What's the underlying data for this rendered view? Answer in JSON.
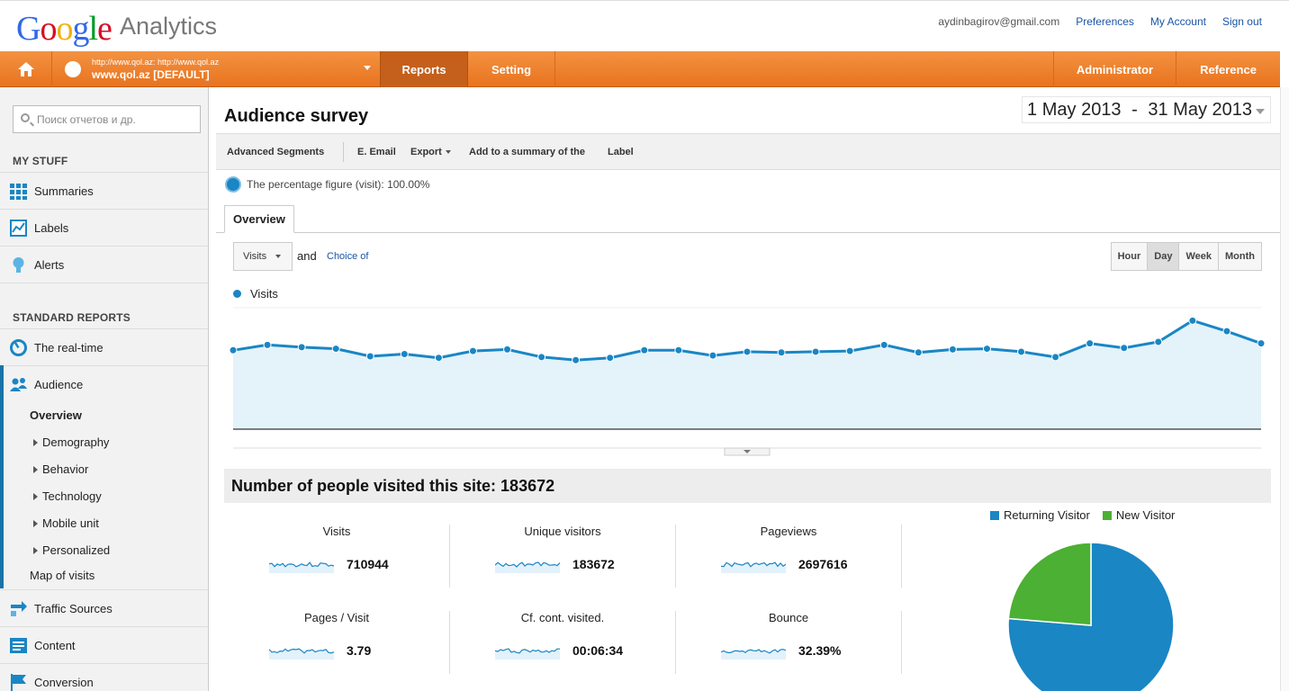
{
  "header": {
    "logo_google": [
      "G",
      "o",
      "o",
      "g",
      "l",
      "e"
    ],
    "logo_product": "Analytics",
    "email": "aydinbagirov@gmail.com",
    "links": [
      "Preferences",
      "My Account",
      "Sign out"
    ]
  },
  "nav": {
    "site_url": "http://www.qol.az: http://www.qol.az",
    "site_name": "www.qol.az [DEFAULT]",
    "tabs": [
      "Reports",
      "Setting"
    ],
    "right_tabs": [
      "Administrator",
      "Reference"
    ],
    "active_tab": "Reports",
    "accent": "#e8731f"
  },
  "sidebar": {
    "search_placeholder": "Поиск отчетов и др.",
    "my_stuff_head": "MY STUFF",
    "my_stuff": [
      {
        "label": "Summaries",
        "icon": "grid-icon"
      },
      {
        "label": "Labels",
        "icon": "chart-icon"
      },
      {
        "label": "Alerts",
        "icon": "lightbulb-icon"
      }
    ],
    "standard_head": "STANDARD REPORTS",
    "realtime": "The real-time",
    "audience": "Audience",
    "audience_sub": [
      {
        "label": "Overview",
        "bold": true,
        "arrow": false
      },
      {
        "label": "Demography",
        "arrow": true
      },
      {
        "label": "Behavior",
        "arrow": true
      },
      {
        "label": "Technology",
        "arrow": true
      },
      {
        "label": "Mobile unit",
        "arrow": true
      },
      {
        "label": "Personalized",
        "arrow": true
      },
      {
        "label": "Map of visits",
        "arrow": false
      }
    ],
    "after": [
      {
        "label": "Traffic Sources",
        "icon": "arrows-icon"
      },
      {
        "label": "Content",
        "icon": "content-icon"
      },
      {
        "label": "Conversion",
        "icon": "flag-icon"
      }
    ]
  },
  "main": {
    "title": "Audience survey",
    "date_from": "1 May 2013",
    "date_sep": "-",
    "date_to": "31 May 2013",
    "toolbar": [
      "Advanced Segments",
      "E. Email",
      "Export",
      "Add to a summary of the",
      "Label"
    ],
    "percentage": "The percentage figure (visit): 100.00%",
    "tab": "Overview",
    "metric": "Visits",
    "and": "and",
    "choice": "Choice of",
    "periods": [
      "Hour",
      "Day",
      "Week",
      "Month"
    ],
    "selected_period": "Day",
    "summary_title": "Number of people visited this site: 183672"
  },
  "chart_data": [
    {
      "type": "area",
      "series": [
        {
          "name": "Visits",
          "values": [
            22400,
            23100,
            22800,
            22600,
            21600,
            21900,
            21400,
            22300,
            22500,
            21500,
            21100,
            21400,
            22400,
            22400,
            21700,
            22200,
            22100,
            22200,
            22300,
            23100,
            22100,
            22500,
            22600,
            22200,
            21500,
            23300,
            22700,
            23500,
            26300,
            24900,
            23300
          ]
        }
      ],
      "x": [
        "1",
        "2",
        "3",
        "4",
        "5",
        "6",
        "7",
        "8",
        "9",
        "10",
        "11",
        "12",
        "13",
        "14",
        "15",
        "16",
        "17",
        "18",
        "19",
        "20",
        "21",
        "22",
        "23",
        "24",
        "25",
        "26",
        "27",
        "28",
        "29",
        "30",
        "31"
      ],
      "color": "#1a86c4",
      "ylim": [
        12000,
        28000
      ]
    },
    {
      "type": "pie",
      "categories": [
        "Returning Visitor",
        "New Visitor"
      ],
      "values": [
        76.3,
        23.7
      ],
      "colors": [
        "#1a86c4",
        "#4cb034"
      ]
    }
  ],
  "kpis": [
    {
      "label": "Visits",
      "value": "710944"
    },
    {
      "label": "Unique visitors",
      "value": "183672"
    },
    {
      "label": "Pageviews",
      "value": "2697616"
    },
    {
      "label": "Pages / Visit",
      "value": "3.79"
    },
    {
      "label": "Cf. cont. visited.",
      "value": "00:06:34"
    },
    {
      "label": "Bounce",
      "value": "32.39%"
    }
  ]
}
